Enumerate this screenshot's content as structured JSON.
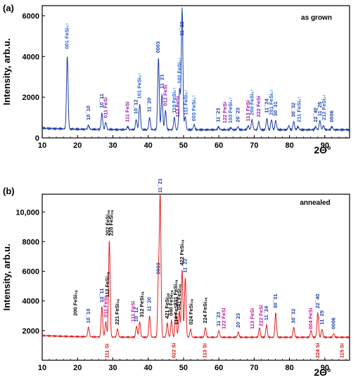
{
  "chart_data": [
    {
      "type": "line",
      "panel_label": "(a)",
      "annotation": "as grown",
      "ylabel": "Intensity, arb.u.",
      "xlabel": "2Θ°",
      "xlim": [
        10,
        97
      ],
      "ylim": [
        0,
        6500
      ],
      "xticks": [
        "10",
        "20",
        "30",
        "40",
        "50",
        "60",
        "70",
        "80",
        "90"
      ],
      "yticks": [
        "0",
        "2000",
        "4000",
        "6000"
      ],
      "ytick_values": [
        0,
        2000,
        4000,
        6000
      ],
      "color": "#1f3fa8",
      "baseline": 400,
      "peaks": [
        {
          "x": 17.1,
          "y": 4000
        },
        {
          "x": 23.1,
          "y": 600
        },
        {
          "x": 26.9,
          "y": 1200
        },
        {
          "x": 28.0,
          "y": 750
        },
        {
          "x": 34.2,
          "y": 550
        },
        {
          "x": 36.6,
          "y": 900
        },
        {
          "x": 37.6,
          "y": 1650
        },
        {
          "x": 40.4,
          "y": 1000
        },
        {
          "x": 42.9,
          "y": 3950
        },
        {
          "x": 43.9,
          "y": 2150
        },
        {
          "x": 44.9,
          "y": 1350
        },
        {
          "x": 47.4,
          "y": 1000
        },
        {
          "x": 48.9,
          "y": 2400
        },
        {
          "x": 49.6,
          "y": 6400
        },
        {
          "x": 50.5,
          "y": 1050
        },
        {
          "x": 53.0,
          "y": 650
        },
        {
          "x": 59.9,
          "y": 550
        },
        {
          "x": 63.4,
          "y": 500
        },
        {
          "x": 65.4,
          "y": 550
        },
        {
          "x": 68.3,
          "y": 600
        },
        {
          "x": 69.4,
          "y": 900
        },
        {
          "x": 71.3,
          "y": 800
        },
        {
          "x": 73.6,
          "y": 950
        },
        {
          "x": 74.9,
          "y": 900
        },
        {
          "x": 76.1,
          "y": 850
        },
        {
          "x": 79.8,
          "y": 600
        },
        {
          "x": 81.2,
          "y": 800
        },
        {
          "x": 82.4,
          "y": 550
        },
        {
          "x": 87.4,
          "y": 550
        },
        {
          "x": 88.6,
          "y": 850
        },
        {
          "x": 89.6,
          "y": 600
        },
        {
          "x": 92.0,
          "y": 550
        }
      ],
      "labels": [
        {
          "text": "001 FeSi₂↑",
          "x": 17.1,
          "y": 4300,
          "color": "#1f5fd6"
        },
        {
          "text": "10¯10",
          "x": 23.1,
          "y": 800,
          "color": "#1f3fa8"
        },
        {
          "text": "10¯11",
          "x": 26.9,
          "y": 1400,
          "color": "#1f3fa8"
        },
        {
          "text": "011 FeSi",
          "x": 28.0,
          "y": 900,
          "color": "#9b1fa8"
        },
        {
          "text": "111 FeSi",
          "x": 34.2,
          "y": 700,
          "color": "#9b1fa8"
        },
        {
          "text": "10¯12",
          "x": 36.6,
          "y": 1100,
          "color": "#1f3fa8"
        },
        {
          "text": "101 FeSi₂↑",
          "x": 37.6,
          "y": 1850,
          "color": "#1f5fd6"
        },
        {
          "text": "11¯20",
          "x": 40.4,
          "y": 1200,
          "color": "#1f3fa8"
        },
        {
          "text": "0003",
          "x": 42.9,
          "y": 4100,
          "color": "#1f3fa8"
        },
        {
          "text": "11¯21",
          "x": 43.9,
          "y": 2350,
          "color": "#1f3fa8"
        },
        {
          "text": "012 FeSi",
          "x": 44.9,
          "y": 1500,
          "color": "#9b1fa8"
        },
        {
          "text": "110 FeSi₂↑",
          "x": 47.4,
          "y": 1150,
          "color": "#1f5fd6"
        },
        {
          "text": "102 FeSi₂↑",
          "x": 48.9,
          "y": 2600,
          "color": "#1f5fd6"
        },
        {
          "text": "112 FeSi",
          "x": 48.4,
          "y": 950,
          "color": "#9b1fa8"
        },
        {
          "text": "11¯22",
          "x": 49.6,
          "y": 4950,
          "color": "#1f3fa8"
        },
        {
          "text": "111 FeSi₂↑",
          "x": 50.7,
          "y": 1050,
          "color": "#1f5fd6"
        },
        {
          "text": "003 FeSi₂↑",
          "x": 53.0,
          "y": 750,
          "color": "#1f5fd6"
        },
        {
          "text": "11¯23",
          "x": 59.9,
          "y": 700,
          "color": "#1f3fa8"
        },
        {
          "text": "122 FeSi",
          "x": 61.8,
          "y": 650,
          "color": "#9b1fa8"
        },
        {
          "text": "103 FeSi₂↑",
          "x": 63.4,
          "y": 650,
          "color": "#1f5fd6"
        },
        {
          "text": "20¯23",
          "x": 65.4,
          "y": 700,
          "color": "#1f3fa8"
        },
        {
          "text": "113 FeSi",
          "x": 68.3,
          "y": 750,
          "color": "#9b1fa8"
        },
        {
          "text": "200 FeSi₂↑",
          "x": 69.4,
          "y": 1050,
          "color": "#1f5fd6"
        },
        {
          "text": "222 FeSi",
          "x": 71.3,
          "y": 950,
          "color": "#9b1fa8"
        },
        {
          "text": "11¯24",
          "x": 73.6,
          "y": 1150,
          "color": "#1f3fa8"
        },
        {
          "text": "201 FeSi₂↑",
          "x": 74.9,
          "y": 1050,
          "color": "#1f5fd6"
        },
        {
          "text": "30¯31",
          "x": 76.1,
          "y": 1000,
          "color": "#1f3fa8"
        },
        {
          "text": "30¯32",
          "x": 81.2,
          "y": 950,
          "color": "#1f3fa8"
        },
        {
          "text": "211 FeSi₂↑",
          "x": 82.8,
          "y": 700,
          "color": "#1f5fd6"
        },
        {
          "text": "22¯40",
          "x": 87.4,
          "y": 700,
          "color": "#1f3fa8"
        },
        {
          "text": "11¯25",
          "x": 88.6,
          "y": 1000,
          "color": "#1f3fa8"
        },
        {
          "text": "212 FeSi₂↑",
          "x": 89.8,
          "y": 800,
          "color": "#1f5fd6"
        },
        {
          "text": "0006",
          "x": 92.0,
          "y": 700,
          "color": "#1f3fa8"
        }
      ]
    },
    {
      "type": "line",
      "panel_label": "(b)",
      "annotation": "annealed",
      "ylabel": "Intensity, arb.u.",
      "xlabel": "2Θ°",
      "xlim": [
        10,
        97
      ],
      "ylim": [
        0,
        11200
      ],
      "xticks": [
        "10",
        "20",
        "30",
        "40",
        "50",
        "60",
        "70",
        "80",
        "90"
      ],
      "yticks": [
        "2000",
        "4000",
        "6000",
        "8000",
        "10,000"
      ],
      "ytick_values": [
        2000,
        4000,
        6000,
        8000,
        10000
      ],
      "color": "#e02020",
      "baseline": 1550,
      "peaks": [
        {
          "x": 23.1,
          "y": 2200
        },
        {
          "x": 26.9,
          "y": 3600
        },
        {
          "x": 28.0,
          "y": 2600
        },
        {
          "x": 29.0,
          "y": 8100
        },
        {
          "x": 31.3,
          "y": 2100
        },
        {
          "x": 36.7,
          "y": 2300
        },
        {
          "x": 37.6,
          "y": 2600
        },
        {
          "x": 40.4,
          "y": 3000
        },
        {
          "x": 42.9,
          "y": 5500
        },
        {
          "x": 43.4,
          "y": 11000
        },
        {
          "x": 45.4,
          "y": 2500
        },
        {
          "x": 46.6,
          "y": 2700
        },
        {
          "x": 47.8,
          "y": 3200
        },
        {
          "x": 48.8,
          "y": 3300
        },
        {
          "x": 49.6,
          "y": 6100
        },
        {
          "x": 50.5,
          "y": 5600
        },
        {
          "x": 52.0,
          "y": 2100
        },
        {
          "x": 56.2,
          "y": 2200
        },
        {
          "x": 60.0,
          "y": 2000
        },
        {
          "x": 65.5,
          "y": 1900
        },
        {
          "x": 71.5,
          "y": 2200
        },
        {
          "x": 73.5,
          "y": 2400
        },
        {
          "x": 76.1,
          "y": 3200
        },
        {
          "x": 81.2,
          "y": 2200
        },
        {
          "x": 86.1,
          "y": 2000
        },
        {
          "x": 88.0,
          "y": 3200
        },
        {
          "x": 89.2,
          "y": 2100
        },
        {
          "x": 92.5,
          "y": 1800
        }
      ],
      "labels": [
        {
          "text": "200 FeSi₂ₐ",
          "x": 19.5,
          "y": 2900,
          "color": "#000000"
        },
        {
          "text": "10¯10",
          "x": 23.1,
          "y": 2400,
          "color": "#1f3fa8"
        },
        {
          "text": "10¯11",
          "x": 26.9,
          "y": 3800,
          "color": "#1f3fa8"
        },
        {
          "text": "011 FeSi",
          "x": 28.0,
          "y": 2800,
          "color": "#c0189a"
        },
        {
          "text": "112 FeSi₂ₐ",
          "x": 28.5,
          "y": 4150,
          "color": "#000000"
        },
        {
          "text": "202 FeSi₂ₐ",
          "x": 28.6,
          "y": 8300,
          "color": "#000000"
        },
        {
          "text": "220 FeSi₂ₐ",
          "x": 29.6,
          "y": 8300,
          "color": "#000000"
        },
        {
          "text": "221 FeSi₂ₐ",
          "x": 31.3,
          "y": 2300,
          "color": "#000000"
        },
        {
          "text": "111 FeSi",
          "x": 35.8,
          "y": 2500,
          "color": "#c0189a"
        },
        {
          "text": "10¯12",
          "x": 36.7,
          "y": 2500,
          "color": "#1f3fa8"
        },
        {
          "text": "312 FeSi₂ₐ",
          "x": 38.3,
          "y": 2800,
          "color": "#000000"
        },
        {
          "text": "11¯20",
          "x": 40.4,
          "y": 3200,
          "color": "#1f3fa8"
        },
        {
          "text": "0003",
          "x": 42.9,
          "y": 5700,
          "color": "#1f3fa8"
        },
        {
          "text": "11¯21",
          "x": 43.4,
          "y": 11200,
          "color": "#1f3fa8"
        },
        {
          "text": "421 FeSi₂ₐ",
          "x": 45.4,
          "y": 2700,
          "color": "#000000"
        },
        {
          "text": "040 FeSi₂ₐ",
          "x": 46.5,
          "y": 2900,
          "color": "#000000"
        },
        {
          "text": "331 FeSi₂ₐ",
          "x": 47.8,
          "y": 3600,
          "color": "#000000"
        },
        {
          "text": "041 FeSi₂ₐ",
          "x": 48.8,
          "y": 3300,
          "color": "#000000"
        },
        {
          "text": "114 FeSi₂ₐ",
          "x": 48.0,
          "y": 2300,
          "color": "#000000"
        },
        {
          "text": "422 FeSi₂ₐ",
          "x": 49.6,
          "y": 6300,
          "color": "#000000"
        },
        {
          "text": "11¯22",
          "x": 50.5,
          "y": 5800,
          "color": "#1f3fa8"
        },
        {
          "text": "024 FeSi₂ₐ",
          "x": 52.2,
          "y": 2300,
          "color": "#000000"
        },
        {
          "text": "224 FeSi₂ₐ",
          "x": 56.2,
          "y": 2400,
          "color": "#000000"
        },
        {
          "text": "11¯23",
          "x": 60.0,
          "y": 2200,
          "color": "#1f3fa8"
        },
        {
          "text": "122 FeSi",
          "x": 61.5,
          "y": 2000,
          "color": "#c0189a"
        },
        {
          "text": "20¯23",
          "x": 65.5,
          "y": 2100,
          "color": "#1f3fa8"
        },
        {
          "text": "113 FeSi",
          "x": 69.5,
          "y": 2000,
          "color": "#c0189a"
        },
        {
          "text": "222 FeSi",
          "x": 72.0,
          "y": 2200,
          "color": "#c0189a"
        },
        {
          "text": "11¯24",
          "x": 73.5,
          "y": 2600,
          "color": "#1f3fa8"
        },
        {
          "text": "30¯31",
          "x": 76.1,
          "y": 3400,
          "color": "#1f3fa8"
        },
        {
          "text": "30¯32",
          "x": 81.2,
          "y": 2400,
          "color": "#1f3fa8"
        },
        {
          "text": "004 FeSi",
          "x": 86.1,
          "y": 2000,
          "color": "#c0189a"
        },
        {
          "text": "22¯40",
          "x": 88.0,
          "y": 3400,
          "color": "#1f3fa8"
        },
        {
          "text": "11¯25",
          "x": 89.2,
          "y": 2300,
          "color": "#1f3fa8"
        },
        {
          "text": "0006",
          "x": 92.5,
          "y": 2000,
          "color": "#1f3fa8"
        }
      ],
      "si_labels": [
        {
          "text": "111 Si",
          "x": 28.4
        },
        {
          "text": "022 Si",
          "x": 47.3
        },
        {
          "text": "113 Si",
          "x": 56.1
        },
        {
          "text": "224 Si",
          "x": 88.0
        },
        {
          "text": "115 Si",
          "x": 94.9
        }
      ]
    }
  ]
}
